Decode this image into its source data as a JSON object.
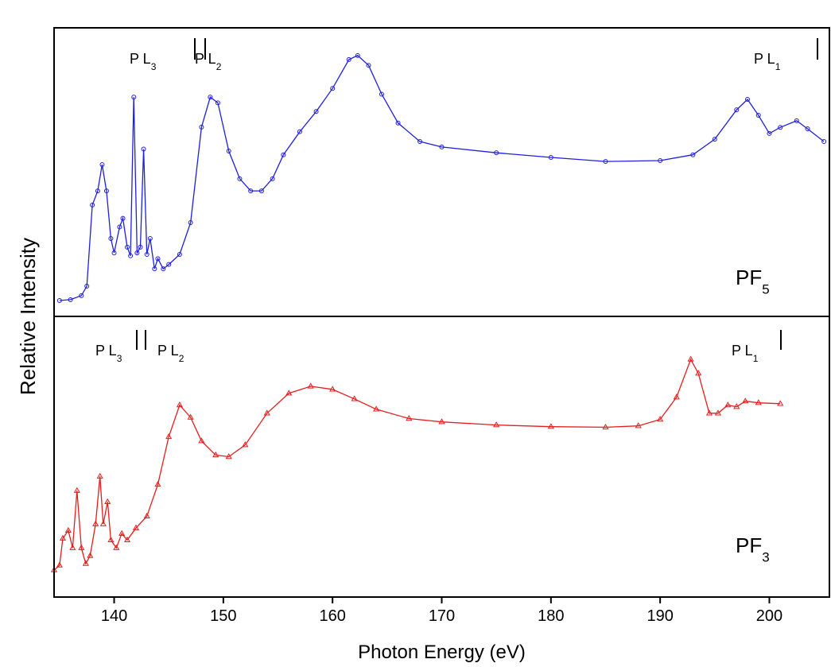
{
  "chart_data": [
    {
      "type": "line",
      "y_label": "Relative Intensity",
      "xlim": [
        134.5,
        205.5
      ],
      "ylim": [
        0,
        1
      ],
      "panel_label": {
        "text": "PF",
        "subscript": "5"
      },
      "annotations": [
        {
          "text": "P L",
          "subscript": "3"
        },
        {
          "text": "P L",
          "subscript": "2"
        },
        {
          "text": "P L",
          "subscript": "1"
        }
      ],
      "x": [
        135,
        136,
        137,
        137.5,
        138,
        138.5,
        138.9,
        139.3,
        139.7,
        140,
        140.5,
        140.8,
        141.2,
        141.5,
        141.8,
        142.1,
        142.4,
        142.7,
        143,
        143.3,
        143.7,
        144,
        144.5,
        145,
        146,
        147,
        148,
        148.8,
        149.5,
        150.5,
        151.5,
        152.5,
        153.5,
        154.5,
        155.5,
        157,
        158.5,
        160,
        161.5,
        162.3,
        163.3,
        164.5,
        166,
        168,
        170,
        175,
        180,
        185,
        190,
        193,
        195,
        197,
        198,
        199,
        200,
        201,
        202.5,
        203.5,
        205
      ],
      "series": [
        {
          "color": "#1f1fe0",
          "marker": "circle",
          "values": [
            0.055,
            0.058,
            0.072,
            0.105,
            0.386,
            0.435,
            0.526,
            0.435,
            0.27,
            0.22,
            0.31,
            0.34,
            0.24,
            0.21,
            0.76,
            0.22,
            0.24,
            0.58,
            0.215,
            0.27,
            0.165,
            0.2,
            0.165,
            0.18,
            0.215,
            0.325,
            0.656,
            0.76,
            0.74,
            0.573,
            0.477,
            0.435,
            0.435,
            0.477,
            0.56,
            0.64,
            0.71,
            0.79,
            0.89,
            0.904,
            0.87,
            0.77,
            0.67,
            0.606,
            0.587,
            0.567,
            0.551,
            0.537,
            0.54,
            0.56,
            0.614,
            0.716,
            0.752,
            0.697,
            0.634,
            0.655,
            0.678,
            0.65,
            0.606
          ]
        }
      ]
    },
    {
      "type": "line",
      "x_label": "Photon Energy (eV)",
      "xlim": [
        134.5,
        205.5
      ],
      "ylim": [
        0,
        1
      ],
      "xticks": [
        140,
        150,
        160,
        170,
        180,
        190,
        200
      ],
      "panel_label": {
        "text": "PF",
        "subscript": "3"
      },
      "annotations": [
        {
          "text": "P L",
          "subscript": "3"
        },
        {
          "text": "P L",
          "subscript": "2"
        },
        {
          "text": "P L",
          "subscript": "1"
        }
      ],
      "x": [
        134.5,
        135,
        135.3,
        135.8,
        136.2,
        136.6,
        137,
        137.4,
        137.8,
        138.3,
        138.7,
        139,
        139.4,
        139.7,
        140.2,
        140.7,
        141.2,
        142,
        143,
        144,
        145,
        146,
        147,
        148,
        149.3,
        150.5,
        152,
        154,
        156,
        158,
        160,
        162,
        164,
        167,
        170,
        175,
        180,
        185,
        188,
        190,
        191.5,
        192.8,
        193.5,
        194.5,
        195.3,
        196.2,
        197,
        197.8,
        199,
        201
      ],
      "series": [
        {
          "color": "#e81c1c",
          "marker": "triangle",
          "values": [
            0.096,
            0.113,
            0.209,
            0.237,
            0.175,
            0.379,
            0.175,
            0.119,
            0.147,
            0.26,
            0.43,
            0.26,
            0.339,
            0.203,
            0.175,
            0.226,
            0.203,
            0.246,
            0.288,
            0.401,
            0.571,
            0.684,
            0.64,
            0.556,
            0.506,
            0.5,
            0.542,
            0.655,
            0.726,
            0.751,
            0.74,
            0.706,
            0.669,
            0.636,
            0.624,
            0.613,
            0.607,
            0.605,
            0.61,
            0.633,
            0.712,
            0.847,
            0.797,
            0.655,
            0.655,
            0.684,
            0.678,
            0.698,
            0.692,
            0.689
          ]
        }
      ]
    }
  ]
}
